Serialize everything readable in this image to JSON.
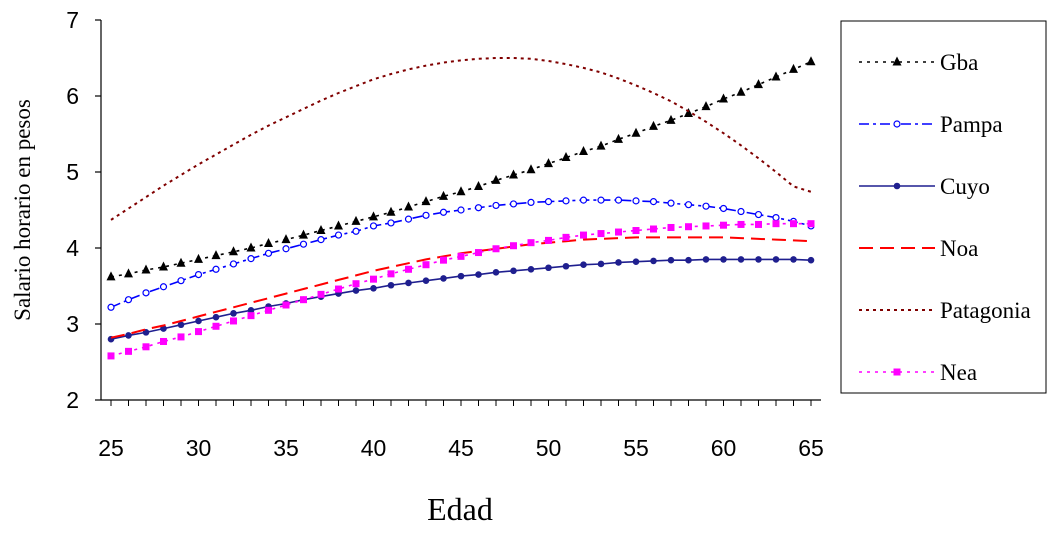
{
  "chart_data": {
    "type": "line",
    "title": "",
    "xlabel": "Edad",
    "ylabel": "Salario horario en pesos",
    "xlim": [
      25,
      65
    ],
    "ylim": [
      2,
      7
    ],
    "x_ticks": [
      25,
      30,
      35,
      40,
      45,
      50,
      55,
      60,
      65
    ],
    "y_ticks": [
      2,
      3,
      4,
      5,
      6,
      7
    ],
    "legend_position": "right",
    "grid": false,
    "x": [
      25,
      26,
      27,
      28,
      29,
      30,
      31,
      32,
      33,
      34,
      35,
      36,
      37,
      38,
      39,
      40,
      41,
      42,
      43,
      44,
      45,
      46,
      47,
      48,
      49,
      50,
      51,
      52,
      53,
      54,
      55,
      56,
      57,
      58,
      59,
      60,
      61,
      62,
      63,
      64,
      65
    ],
    "series": [
      {
        "name": "Gba",
        "color": "#000000",
        "dash": "3,5",
        "marker": "triangle",
        "values": [
          3.62,
          3.66,
          3.71,
          3.75,
          3.8,
          3.85,
          3.9,
          3.95,
          4.0,
          4.06,
          4.11,
          4.17,
          4.23,
          4.29,
          4.35,
          4.41,
          4.47,
          4.54,
          4.61,
          4.68,
          4.74,
          4.81,
          4.89,
          4.96,
          5.03,
          5.11,
          5.19,
          5.27,
          5.34,
          5.43,
          5.51,
          5.6,
          5.68,
          5.77,
          5.86,
          5.96,
          6.05,
          6.15,
          6.25,
          6.35,
          6.45
        ]
      },
      {
        "name": "Pampa",
        "color": "#0000ff",
        "dash": "10,4,3,4",
        "marker": "circle-open",
        "values": [
          3.22,
          3.32,
          3.41,
          3.49,
          3.57,
          3.65,
          3.72,
          3.79,
          3.86,
          3.93,
          3.99,
          4.05,
          4.11,
          4.17,
          4.22,
          4.29,
          4.33,
          4.38,
          4.43,
          4.47,
          4.5,
          4.53,
          4.56,
          4.58,
          4.6,
          4.61,
          4.62,
          4.63,
          4.63,
          4.63,
          4.62,
          4.61,
          4.59,
          4.57,
          4.55,
          4.52,
          4.48,
          4.44,
          4.4,
          4.35,
          4.29
        ]
      },
      {
        "name": "Cuyo",
        "color": "#1f1f8f",
        "dash": "",
        "marker": "circle-filled",
        "values": [
          2.8,
          2.85,
          2.89,
          2.94,
          2.99,
          3.04,
          3.09,
          3.14,
          3.18,
          3.23,
          3.27,
          3.32,
          3.36,
          3.4,
          3.44,
          3.47,
          3.51,
          3.54,
          3.57,
          3.6,
          3.63,
          3.65,
          3.68,
          3.7,
          3.72,
          3.74,
          3.76,
          3.78,
          3.79,
          3.81,
          3.82,
          3.83,
          3.84,
          3.84,
          3.85,
          3.85,
          3.85,
          3.85,
          3.85,
          3.85,
          3.84
        ]
      },
      {
        "name": "Noa",
        "color": "#ff0000",
        "dash": "14,7",
        "marker": "none",
        "values": [
          2.82,
          2.87,
          2.93,
          2.98,
          3.04,
          3.1,
          3.16,
          3.22,
          3.28,
          3.34,
          3.4,
          3.46,
          3.52,
          3.58,
          3.64,
          3.7,
          3.75,
          3.8,
          3.85,
          3.89,
          3.93,
          3.96,
          3.99,
          4.02,
          4.05,
          4.07,
          4.09,
          4.11,
          4.12,
          4.13,
          4.14,
          4.14,
          4.14,
          4.14,
          4.14,
          4.14,
          4.13,
          4.12,
          4.11,
          4.1,
          4.09
        ]
      },
      {
        "name": "Patagonia",
        "color": "#800000",
        "dash": "3,4",
        "marker": "none",
        "values": [
          4.37,
          4.52,
          4.67,
          4.82,
          4.96,
          5.1,
          5.23,
          5.36,
          5.49,
          5.61,
          5.72,
          5.83,
          5.94,
          6.04,
          6.13,
          6.22,
          6.29,
          6.35,
          6.4,
          6.44,
          6.47,
          6.49,
          6.5,
          6.5,
          6.49,
          6.46,
          6.42,
          6.37,
          6.31,
          6.23,
          6.14,
          6.04,
          5.93,
          5.8,
          5.66,
          5.51,
          5.35,
          5.18,
          5.0,
          4.81,
          4.74
        ]
      },
      {
        "name": "Nea",
        "color": "#ff00ff",
        "dash": "3,5",
        "marker": "square",
        "values": [
          2.58,
          2.64,
          2.7,
          2.77,
          2.83,
          2.9,
          2.97,
          3.04,
          3.11,
          3.18,
          3.25,
          3.32,
          3.39,
          3.46,
          3.53,
          3.59,
          3.66,
          3.72,
          3.78,
          3.84,
          3.89,
          3.94,
          3.99,
          4.03,
          4.07,
          4.1,
          4.14,
          4.17,
          4.19,
          4.21,
          4.23,
          4.25,
          4.27,
          4.28,
          4.29,
          4.3,
          4.31,
          4.31,
          4.32,
          4.32,
          4.32
        ]
      }
    ]
  }
}
